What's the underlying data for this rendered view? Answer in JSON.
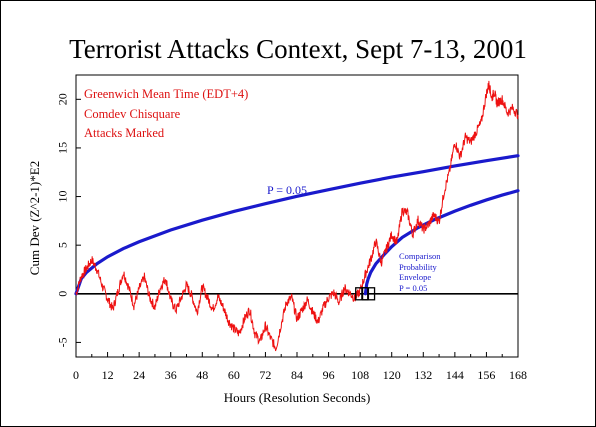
{
  "chart_data": {
    "type": "line",
    "title": "Terrorist Attacks Context, Sept 7-13, 2001",
    "xlabel": "Hours (Resolution Seconds)",
    "ylabel": "Cum Dev (Z^2-1)*E2",
    "xlim": [
      0,
      168
    ],
    "ylim": [
      -6.5,
      22.5
    ],
    "x_ticks": [
      0,
      12,
      24,
      36,
      48,
      60,
      72,
      84,
      96,
      108,
      120,
      132,
      144,
      156,
      168
    ],
    "y_ticks": [
      -5,
      0,
      5,
      10,
      15,
      20
    ],
    "legend_text": [
      "Greenwich Mean Time (EDT+4)",
      "Comdev Chisquare",
      "Attacks Marked"
    ],
    "grid": false,
    "series": [
      {
        "color": "#ee1111",
        "x": [
          0,
          2,
          4,
          6,
          8,
          10,
          12,
          14,
          16,
          18,
          20,
          22,
          24,
          26,
          28,
          30,
          32,
          34,
          36,
          38,
          40,
          42,
          44,
          46,
          48,
          50,
          52,
          54,
          56,
          58,
          60,
          62,
          64,
          66,
          68,
          70,
          72,
          74,
          76,
          78,
          80,
          82,
          84,
          86,
          88,
          90,
          92,
          94,
          96,
          98,
          100,
          102,
          104,
          106,
          108,
          110,
          112,
          114,
          116,
          118,
          120,
          122,
          124,
          126,
          128,
          130,
          132,
          134,
          136,
          138,
          140,
          142,
          144,
          146,
          148,
          150,
          152,
          154,
          156,
          157,
          158,
          159,
          160,
          162,
          164,
          166,
          168
        ],
        "values": [
          0,
          1.8,
          2.6,
          3.5,
          2.5,
          0.8,
          -0.5,
          -1.6,
          0.3,
          2.2,
          0.7,
          -1.2,
          0.5,
          1.7,
          -0.4,
          -1.4,
          0.6,
          1.6,
          -0.6,
          -1.7,
          -0.4,
          0.9,
          -0.2,
          -1.9,
          0.7,
          -0.4,
          -1.6,
          -0.3,
          -1.4,
          -2.8,
          -3.6,
          -4.1,
          -2.6,
          -1.6,
          -4.1,
          -4.9,
          -3.3,
          -4.6,
          -5.6,
          -3.1,
          -0.9,
          -0.4,
          -2.6,
          -1.6,
          -0.6,
          -1.9,
          -2.9,
          -1.4,
          -0.4,
          0.1,
          -0.9,
          0.6,
          0.1,
          -0.5,
          0.3,
          2.0,
          3.5,
          5.4,
          3.2,
          4.6,
          6.1,
          5.2,
          8.6,
          8.3,
          6.1,
          7.6,
          6.6,
          7.1,
          8.1,
          7.4,
          10.6,
          12.6,
          15.6,
          14.1,
          16.1,
          15.6,
          16.6,
          17.6,
          20.6,
          21.6,
          20.1,
          20.8,
          19.6,
          20.0,
          18.6,
          19.1,
          18.4
        ]
      },
      {
        "name": "P = 0.05",
        "color": "#1a1acc",
        "x": [
          0,
          2,
          4,
          8,
          12,
          18,
          24,
          36,
          48,
          60,
          72,
          84,
          96,
          108,
          120,
          132,
          144,
          156,
          168
        ],
        "values": [
          0,
          1.55,
          2.2,
          3.1,
          3.8,
          4.65,
          5.35,
          6.56,
          7.57,
          8.47,
          9.27,
          10.02,
          10.7,
          11.37,
          12.0,
          12.56,
          13.15,
          13.69,
          14.2
        ]
      },
      {
        "name": "Comparison Probability Envelope P = 0.05",
        "color": "#1a1acc",
        "x": [
          110,
          110.5,
          111,
          112,
          114,
          117,
          120,
          124,
          130,
          136,
          144,
          150,
          156,
          162,
          168
        ],
        "values": [
          0,
          1.0,
          1.5,
          2.2,
          3.1,
          4.0,
          4.85,
          5.8,
          6.8,
          7.6,
          8.5,
          9.1,
          9.65,
          10.15,
          10.6
        ]
      }
    ],
    "upper_envelope_offset_from_series2": [
      0,
      1.6,
      2.2,
      3.0,
      3.7,
      4.6,
      5.3,
      6.5,
      7.6,
      8.5,
      9.3,
      10.1,
      10.8,
      11.5,
      12.1,
      12.7,
      13.3,
      13.8,
      14.2
    ],
    "annotations": [
      {
        "text": "P = 0.05",
        "color": "#1a1acc"
      },
      {
        "text_lines": [
          "Comparison",
          "Probability",
          "Envelope",
          "P = 0.05"
        ],
        "color": "#1a1acc"
      }
    ],
    "markers": [
      {
        "type": "box",
        "x": 108.6,
        "y": 0
      },
      {
        "type": "box",
        "x": 111.2,
        "y": 0
      }
    ]
  }
}
